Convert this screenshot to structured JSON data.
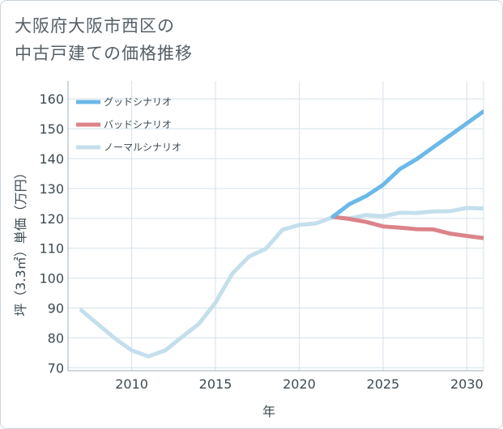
{
  "title_lines": [
    "大阪府大阪市西区の",
    "中古戸建ての価格推移"
  ],
  "chart_data": {
    "type": "line",
    "title": "大阪府大阪市西区の中古戸建ての価格推移",
    "xlabel": "年",
    "ylabel": "坪（3.3㎡）単価（万円）",
    "xlim": [
      2006.2,
      2031
    ],
    "ylim": [
      69,
      166
    ],
    "xticks": [
      2010,
      2015,
      2020,
      2025,
      2030
    ],
    "yticks": [
      70,
      80,
      90,
      100,
      110,
      120,
      130,
      140,
      150,
      160
    ],
    "grid": true,
    "legend_position": "top-left",
    "series": [
      {
        "name": "グッドシナリオ",
        "color": "#6bb8e9",
        "x": [
          2022,
          2023,
          2024,
          2025,
          2026,
          2027,
          2028,
          2029,
          2030,
          2031
        ],
        "values": [
          120.5,
          124.8,
          127.5,
          131.2,
          136.5,
          139.8,
          143.8,
          147.8,
          151.8,
          155.8
        ]
      },
      {
        "name": "バッドシナリオ",
        "color": "#dc8389",
        "x": [
          2022,
          2023,
          2024,
          2025,
          2026,
          2027,
          2028,
          2029,
          2030,
          2031
        ],
        "values": [
          120.5,
          119.8,
          118.8,
          117.3,
          116.9,
          116.4,
          116.3,
          114.9,
          114.1,
          113.4
        ]
      },
      {
        "name": "ノーマルシナリオ",
        "color": "#c4dfec",
        "x": [
          2007,
          2008,
          2009,
          2010,
          2011,
          2012,
          2013,
          2014,
          2015,
          2016,
          2017,
          2018,
          2019,
          2020,
          2021,
          2022,
          2023,
          2024,
          2025,
          2026,
          2027,
          2028,
          2029,
          2030,
          2031
        ],
        "values": [
          89.2,
          84.5,
          79.8,
          75.8,
          73.8,
          75.8,
          80.3,
          84.6,
          91.8,
          101.5,
          107.2,
          109.8,
          116.2,
          117.8,
          118.3,
          120.4,
          120.0,
          121.1,
          120.7,
          121.9,
          121.8,
          122.3,
          122.4,
          123.5,
          123.3
        ]
      }
    ]
  }
}
